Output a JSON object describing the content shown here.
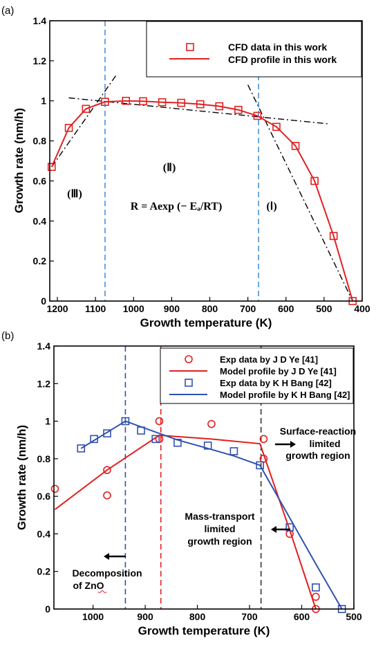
{
  "chart_data": [
    {
      "panel_label": "(a)",
      "type": "scatter",
      "xlabel": "Growth temperature (K)",
      "ylabel": "Growth rate (nm/h)",
      "xlim": [
        1220,
        400
      ],
      "ylim": [
        0,
        1.4
      ],
      "x_ticks": [
        1200,
        1100,
        1000,
        900,
        800,
        700,
        600,
        500,
        400
      ],
      "y_ticks": [
        0,
        0.2,
        0.4,
        0.6,
        0.8,
        1,
        1.2,
        1.4
      ],
      "legend": {
        "placement": "top-right",
        "entries": [
          "CFD data in this work",
          "CFD profile in this work"
        ]
      },
      "series": [
        {
          "name": "CFD data in this work",
          "marker": "square",
          "color": "#e02020",
          "x": [
            1215,
            1170,
            1125,
            1075,
            1020,
            975,
            925,
            875,
            825,
            775,
            725,
            675,
            625,
            575,
            525,
            475,
            425
          ],
          "y": [
            0.67,
            0.865,
            0.96,
            0.995,
            1.0,
            0.998,
            0.993,
            0.99,
            0.983,
            0.973,
            0.955,
            0.925,
            0.87,
            0.775,
            0.6,
            0.325,
            0.0
          ]
        },
        {
          "name": "CFD profile in this work",
          "line": "solid",
          "color": "#e02020",
          "x": [
            1215,
            1170,
            1125,
            1075,
            1020,
            975,
            925,
            875,
            825,
            775,
            725,
            675,
            625,
            575,
            525,
            475,
            425
          ],
          "y": [
            0.67,
            0.865,
            0.96,
            0.995,
            1.0,
            0.998,
            0.993,
            0.99,
            0.983,
            0.973,
            0.955,
            0.925,
            0.87,
            0.775,
            0.6,
            0.325,
            0.0
          ]
        }
      ],
      "guide_lines": [
        {
          "style": "dash-dot",
          "color": "#000000",
          "x": [
            1215,
            1045
          ],
          "y": [
            0.67,
            1.13
          ]
        },
        {
          "style": "dash-dot",
          "color": "#000000",
          "x": [
            1170,
            488
          ],
          "y": [
            1.015,
            0.885
          ]
        },
        {
          "style": "dash-dot",
          "color": "#000000",
          "x": [
            700,
            425
          ],
          "y": [
            1.08,
            0.0
          ]
        }
      ],
      "vlines": [
        {
          "x": 1075,
          "style": "dashed",
          "color": "#4a90d9"
        },
        {
          "x": 672,
          "style": "dashed",
          "color": "#4a90d9"
        }
      ],
      "annotations": [
        {
          "text": "(Ⅱ)",
          "x": 1000,
          "y": 0.735
        },
        {
          "text": "(Ⅲ)",
          "x": 1170,
          "y": 0.6
        },
        {
          "text": "(Ⅰ)",
          "x": 660,
          "y": 0.49
        },
        {
          "text": "R = Aexp (− Eₐ/RT)",
          "x": 865,
          "y": 0.49
        }
      ]
    },
    {
      "panel_label": "(b)",
      "type": "scatter",
      "xlabel": "Growth temperature (K)",
      "ylabel": "Growth rate (nm/h)",
      "xlim": [
        1075,
        500
      ],
      "ylim": [
        0,
        1.4
      ],
      "x_ticks": [
        1000,
        900,
        800,
        700,
        600,
        500
      ],
      "y_ticks": [
        0,
        0.2,
        0.4,
        0.6,
        0.8,
        1,
        1.2,
        1.4
      ],
      "legend": {
        "placement": "top-right",
        "entries": [
          "Exp data by J D Ye [41]",
          "Model profile by J D Ye [41]",
          "Exp data by K H Bang [42]",
          "Model profile by K H Bang [42]"
        ]
      },
      "series": [
        {
          "name": "Exp data by J D Ye [41]",
          "marker": "circle",
          "color": "#e02020",
          "x": [
            1073,
            973,
            973,
            873,
            873,
            773,
            673,
            673,
            623,
            573,
            573
          ],
          "y": [
            0.64,
            0.74,
            0.605,
            1.0,
            0.905,
            0.985,
            0.905,
            0.8,
            0.4,
            0.065,
            0.0
          ]
        },
        {
          "name": "Model profile by J D Ye [41]",
          "line": "solid",
          "color": "#e02020",
          "x": [
            1073,
            973,
            873,
            773,
            680,
            623,
            573
          ],
          "y": [
            0.53,
            0.74,
            0.925,
            0.905,
            0.88,
            0.42,
            0.0
          ]
        },
        {
          "name": "Exp data by K H Bang [42]",
          "marker": "square",
          "color": "#3050b0",
          "x": [
            1023,
            998,
            973,
            938,
            908,
            880,
            838,
            780,
            730,
            680,
            623,
            573,
            523
          ],
          "y": [
            0.855,
            0.905,
            0.935,
            1.0,
            0.95,
            0.905,
            0.885,
            0.87,
            0.84,
            0.765,
            0.435,
            0.115,
            0.0
          ]
        },
        {
          "name": "Model profile by K H Bang [42]",
          "line": "solid",
          "color": "#3050b0",
          "x": [
            1023,
            938,
            838,
            780,
            730,
            680,
            573,
            523
          ],
          "y": [
            0.855,
            1.0,
            0.9,
            0.855,
            0.815,
            0.765,
            0.24,
            0.0
          ]
        }
      ],
      "vlines": [
        {
          "x": 938,
          "style": "dashed",
          "color": "#3050b0"
        },
        {
          "x": 870,
          "style": "dashed",
          "color": "#e02020"
        },
        {
          "x": 678,
          "style": "dashed",
          "color": "#333333"
        }
      ],
      "annotations": [
        {
          "lines": [
            "Surface-reaction",
            "limited",
            "growth region"
          ],
          "x": 612,
          "y": 1.01,
          "arrow": "right"
        },
        {
          "lines": [
            "Mass-transport",
            "limited",
            "growth region"
          ],
          "x": 775,
          "y": 0.62,
          "arrow": "left"
        },
        {
          "lines": [
            "Decomposition",
            "of ZnO"
          ],
          "x": 983,
          "y": 0.3,
          "arrow": "left"
        }
      ]
    }
  ]
}
